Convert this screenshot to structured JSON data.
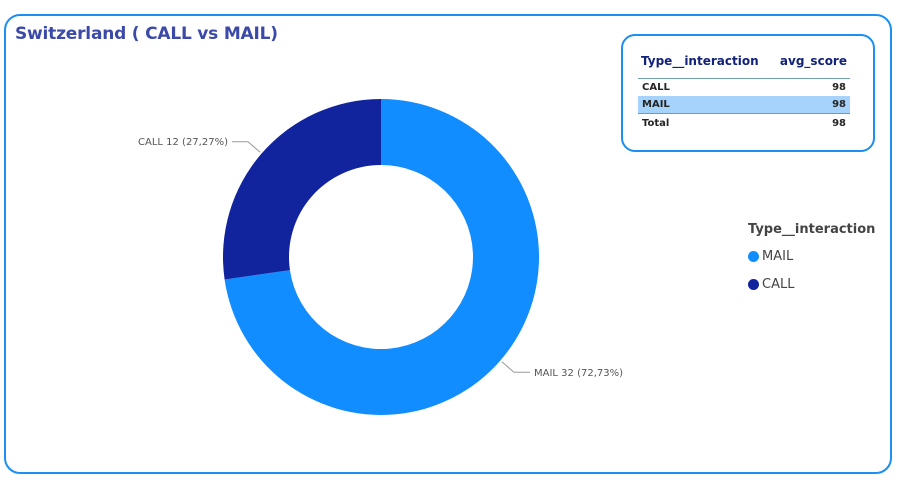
{
  "colors": {
    "border": "#1b8ff2",
    "mail": "#118dff",
    "call": "#12239e"
  },
  "chart_data": {
    "type": "pie",
    "title": "Switzerland ( CALL vs MAIL)",
    "donut": true,
    "slices": [
      {
        "label": "MAIL",
        "value": 32,
        "percent": "72,73%",
        "color": "#118dff",
        "data_label": "MAIL 32 (72,73%)"
      },
      {
        "label": "CALL",
        "value": 12,
        "percent": "27,27%",
        "color": "#12239e",
        "data_label": "CALL 12 (27,27%)"
      }
    ],
    "legend": {
      "title": "Type__interaction",
      "placement": "right",
      "items": [
        {
          "label": "MAIL",
          "color": "#118dff"
        },
        {
          "label": "CALL",
          "color": "#12239e"
        }
      ]
    }
  },
  "table": {
    "headers": [
      "Type__interaction",
      "avg_score"
    ],
    "rows": [
      {
        "type": "CALL",
        "score": "98",
        "selected": false
      },
      {
        "type": "MAIL",
        "score": "98",
        "selected": true
      }
    ],
    "total": {
      "label": "Total",
      "score": "98"
    }
  }
}
